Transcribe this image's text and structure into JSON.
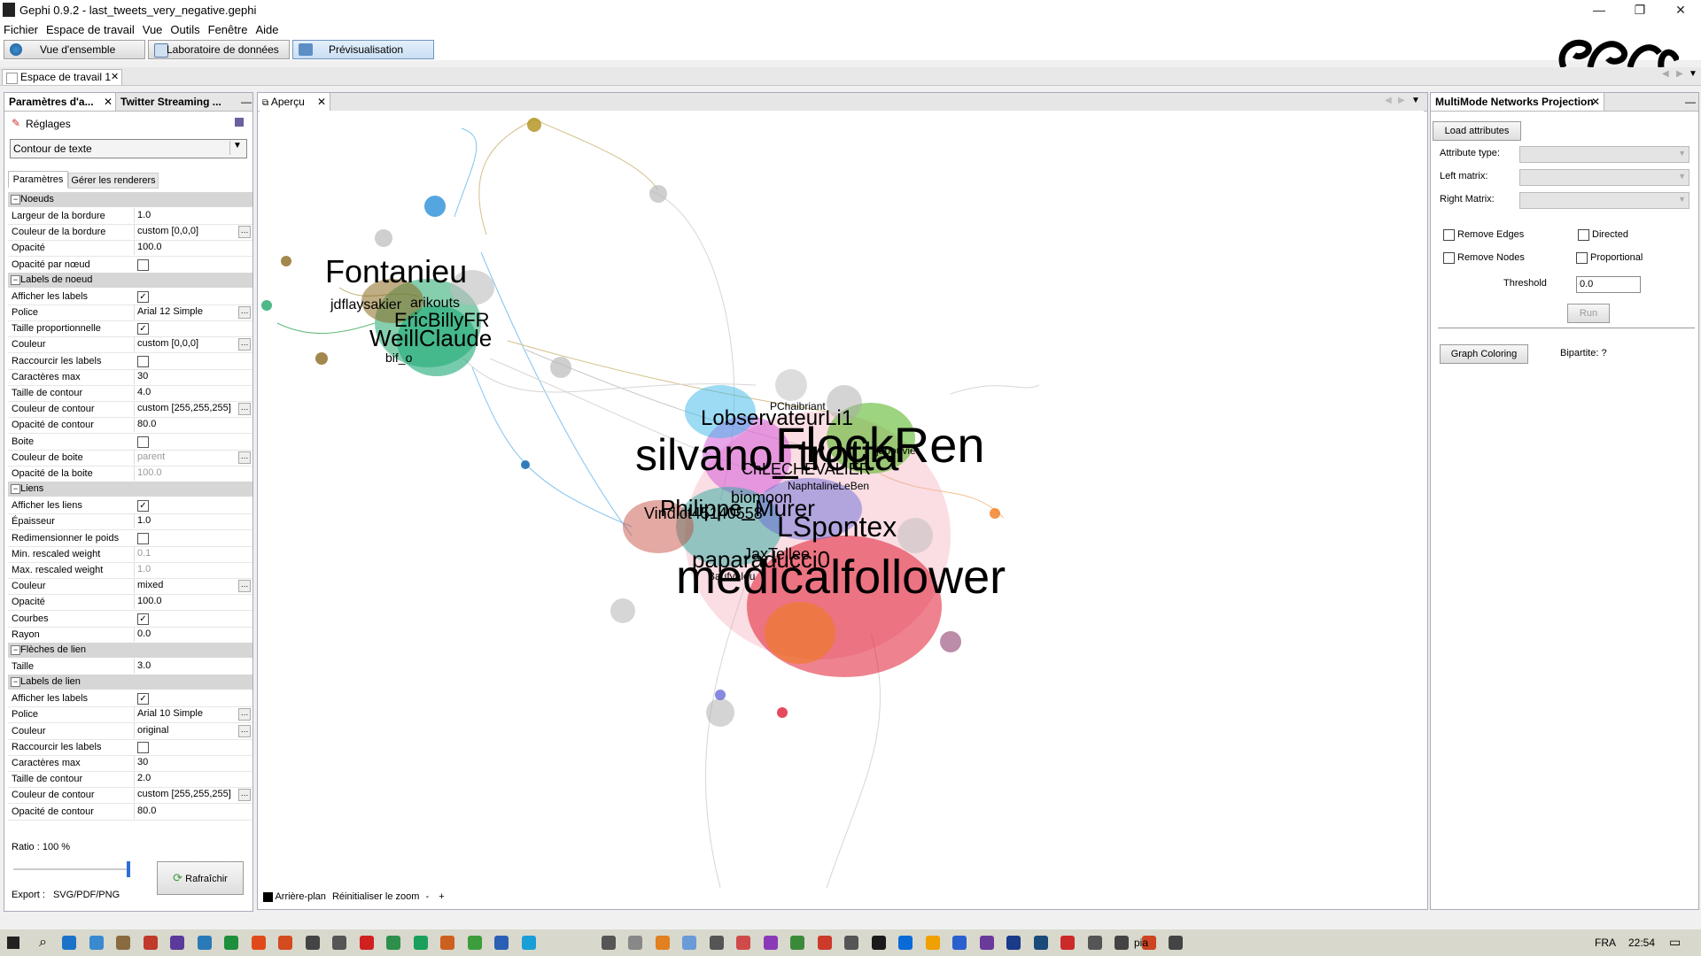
{
  "window": {
    "title": "Gephi 0.9.2 - last_tweets_very_negative.gephi",
    "min": "—",
    "max": "❐",
    "close": "✕"
  },
  "menu": [
    "Fichier",
    "Espace de travail",
    "Vue",
    "Outils",
    "Fenêtre",
    "Aide"
  ],
  "modes": {
    "overview": "Vue d'ensemble",
    "data_lab": "Laboratoire de données",
    "preview": "Prévisualisation"
  },
  "workspace_tab": "Espace de travail 1",
  "left_panel": {
    "tabs": [
      "Paramètres d'a...",
      "Twitter Streaming ..."
    ],
    "section": "Réglages",
    "preset": "Contour de texte",
    "subtabs": [
      "Paramètres",
      "Gérer les renderers"
    ],
    "groups": [
      {
        "name": "Noeuds",
        "rows": [
          {
            "k": "Largeur de la bordure",
            "v": "1.0"
          },
          {
            "k": "Couleur de la bordure",
            "v": "custom [0,0,0]",
            "dots": true
          },
          {
            "k": "Opacité",
            "v": "100.0"
          },
          {
            "k": "Opacité par nœud",
            "check": false
          }
        ]
      },
      {
        "name": "Labels de noeud",
        "rows": [
          {
            "k": "Afficher les labels",
            "check": true
          },
          {
            "k": "Police",
            "v": "Arial 12 Simple",
            "dots": true
          },
          {
            "k": "Taille proportionnelle",
            "check": true
          },
          {
            "k": "Couleur",
            "v": "custom [0,0,0]",
            "dots": true
          },
          {
            "k": "Raccourcir les labels",
            "check": false
          },
          {
            "k": "Caractères max",
            "v": "30"
          },
          {
            "k": "Taille de contour",
            "v": "4.0"
          },
          {
            "k": "Couleur de contour",
            "v": "custom [255,255,255]",
            "dots": true
          },
          {
            "k": "Opacité de contour",
            "v": "80.0"
          },
          {
            "k": "Boite",
            "check": false
          },
          {
            "k": "Couleur de boite",
            "v": "parent",
            "dis": true,
            "dots": true
          },
          {
            "k": "Opacité de la boite",
            "v": "100.0",
            "dis": true
          }
        ]
      },
      {
        "name": "Liens",
        "rows": [
          {
            "k": "Afficher les liens",
            "check": true
          },
          {
            "k": "Épaisseur",
            "v": "1.0"
          },
          {
            "k": "Redimensionner le poids",
            "check": false
          },
          {
            "k": "Min. rescaled weight",
            "v": "0.1",
            "dis": true
          },
          {
            "k": "Max. rescaled weight",
            "v": "1.0",
            "dis": true
          },
          {
            "k": "Couleur",
            "v": "mixed",
            "dots": true
          },
          {
            "k": "Opacité",
            "v": "100.0"
          },
          {
            "k": "Courbes",
            "check": true
          },
          {
            "k": "Rayon",
            "v": "0.0"
          }
        ]
      },
      {
        "name": "Flèches de lien",
        "rows": [
          {
            "k": "Taille",
            "v": "3.0"
          }
        ]
      },
      {
        "name": "Labels de lien",
        "rows": [
          {
            "k": "Afficher les labels",
            "check": true
          },
          {
            "k": "Police",
            "v": "Arial 10 Simple",
            "dots": true
          },
          {
            "k": "Couleur",
            "v": "original",
            "dots": true
          },
          {
            "k": "Raccourcir les labels",
            "check": false
          },
          {
            "k": "Caractères max",
            "v": "30"
          },
          {
            "k": "Taille de contour",
            "v": "2.0"
          },
          {
            "k": "Couleur de contour",
            "v": "custom [255,255,255]",
            "dots": true
          },
          {
            "k": "Opacité de contour",
            "v": "80.0"
          }
        ]
      }
    ],
    "ratio_label": "Ratio :",
    "ratio_value": "100 %",
    "refresh": "Rafraîchir",
    "export_label": "Export :",
    "export_value": "SVG/PDF/PNG"
  },
  "center_panel": {
    "tab": "Aperçu",
    "bottom": {
      "background": "Arrière-plan",
      "reset_zoom": "Réinitialiser le zoom",
      "minus": "-",
      "plus": "+"
    },
    "labels": [
      {
        "t": "Fontanieu"
      },
      {
        "t": "jdflaysakier"
      },
      {
        "t": "arikouts"
      },
      {
        "t": "EricBillyFR"
      },
      {
        "t": "WeillClaude"
      },
      {
        "t": "bif_o"
      },
      {
        "t": "PChaibriant"
      },
      {
        "t": "LobservateurLi1"
      },
      {
        "t": "FlockRen"
      },
      {
        "t": "silvano_trotta"
      },
      {
        "t": "jabouvier"
      },
      {
        "t": "ChLECHEVALIER"
      },
      {
        "t": "NaphtalineLeBen"
      },
      {
        "t": "biomoon"
      },
      {
        "t": "Vindict45140558"
      },
      {
        "t": "Philippe_Murer"
      },
      {
        "t": "LSpontex"
      },
      {
        "t": "paparaducci0"
      },
      {
        "t": "JaxTellee"
      },
      {
        "t": "medicalfollower"
      },
      {
        "t": "Baufvalou"
      }
    ]
  },
  "right_panel": {
    "tab": "MultiMode Networks Projection",
    "load": "Load attributes",
    "attribute_type": "Attribute type:",
    "left_matrix": "Left matrix:",
    "right_matrix": "Right Matrix:",
    "remove_edges": "Remove Edges",
    "directed": "Directed",
    "remove_nodes": "Remove Nodes",
    "proportional": "Proportional",
    "threshold_label": "Threshold",
    "threshold_value": "0.0",
    "run": "Run",
    "graph_coloring": "Graph Coloring",
    "bipartite": "Bipartite: ?"
  },
  "taskbar": {
    "lang": "FRA",
    "time": "22:54",
    "pia": "pia"
  }
}
